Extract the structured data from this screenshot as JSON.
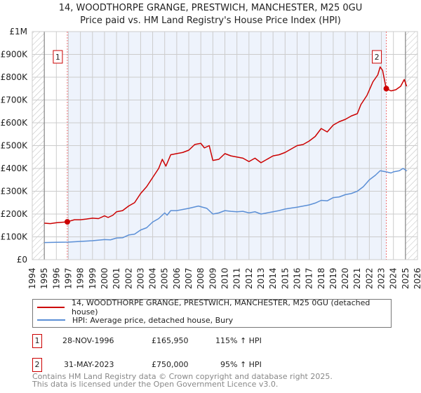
{
  "title_line1": "14, WOODTHORPE GRANGE, PRESTWICH, MANCHESTER, M25 0GU",
  "title_line2": "Price paid vs. HM Land Registry's House Price Index (HPI)",
  "chart_data": {
    "type": "line",
    "title": "Price paid vs. HM Land Registry's House Price Index (HPI)",
    "xlim": [
      1994,
      2026
    ],
    "ylim": [
      0,
      1000000
    ],
    "x_ticks": [
      "1994",
      "1995",
      "1996",
      "1997",
      "1998",
      "1999",
      "2000",
      "2001",
      "2002",
      "2003",
      "2004",
      "2005",
      "2006",
      "2007",
      "2008",
      "2009",
      "2010",
      "2011",
      "2012",
      "2013",
      "2014",
      "2015",
      "2016",
      "2017",
      "2018",
      "2019",
      "2020",
      "2021",
      "2022",
      "2023",
      "2024",
      "2025",
      "2026"
    ],
    "y_ticks": [
      {
        "v": 0,
        "label": "£0"
      },
      {
        "v": 100000,
        "label": "£100K"
      },
      {
        "v": 200000,
        "label": "£200K"
      },
      {
        "v": 300000,
        "label": "£300K"
      },
      {
        "v": 400000,
        "label": "£400K"
      },
      {
        "v": 500000,
        "label": "£500K"
      },
      {
        "v": 600000,
        "label": "£600K"
      },
      {
        "v": 700000,
        "label": "£700K"
      },
      {
        "v": 800000,
        "label": "£800K"
      },
      {
        "v": 900000,
        "label": "£900K"
      },
      {
        "v": 1000000,
        "label": "£1M"
      }
    ],
    "grid": true,
    "series": [
      {
        "name": "14, WOODTHORPE GRANGE, PRESTWICH, MANCHESTER, M25 0GU (detached house)",
        "color": "#cc0000",
        "x": [
          1995,
          1995.5,
          1996,
          1996.9,
          1997.5,
          1998,
          1998.5,
          1999,
          1999.5,
          2000,
          2000.3,
          2000.7,
          2001,
          2001.5,
          2002,
          2002.5,
          2003,
          2003.5,
          2004,
          2004.5,
          2004.8,
          2005.1,
          2005.5,
          2006,
          2006.5,
          2007,
          2007.5,
          2008,
          2008.3,
          2008.7,
          2009,
          2009.5,
          2010,
          2010.5,
          2011,
          2011.5,
          2012,
          2012.5,
          2013,
          2013.5,
          2014,
          2014.5,
          2015,
          2015.5,
          2016,
          2016.5,
          2017,
          2017.5,
          2018,
          2018.5,
          2019,
          2019.5,
          2020,
          2020.5,
          2021,
          2021.3,
          2021.8,
          2022.3,
          2022.7,
          2022.9,
          2023.1,
          2023.4,
          2023.8,
          2024.2,
          2024.6,
          2024.9,
          2025.1
        ],
        "y": [
          160000,
          158000,
          162000,
          165950,
          175000,
          175000,
          178000,
          182000,
          180000,
          192000,
          185000,
          195000,
          210000,
          215000,
          235000,
          250000,
          290000,
          320000,
          360000,
          400000,
          440000,
          410000,
          460000,
          465000,
          470000,
          480000,
          505000,
          510000,
          490000,
          500000,
          435000,
          440000,
          465000,
          455000,
          450000,
          445000,
          430000,
          445000,
          425000,
          440000,
          455000,
          460000,
          470000,
          485000,
          500000,
          505000,
          520000,
          540000,
          575000,
          560000,
          590000,
          605000,
          615000,
          630000,
          640000,
          680000,
          720000,
          780000,
          810000,
          845000,
          830000,
          750000,
          740000,
          745000,
          760000,
          790000,
          760000
        ]
      },
      {
        "name": "HPI: Average price, detached house, Bury",
        "color": "#5b8fd6",
        "x": [
          1995,
          1996,
          1997,
          1998,
          1999,
          2000,
          2000.5,
          2001,
          2001.5,
          2002,
          2002.5,
          2003,
          2003.5,
          2004,
          2004.5,
          2005,
          2005.2,
          2005.5,
          2006,
          2006.5,
          2007,
          2007.8,
          2008.5,
          2009,
          2009.5,
          2010,
          2010.5,
          2011,
          2011.5,
          2012,
          2012.5,
          2013,
          2013.5,
          2014,
          2014.5,
          2015,
          2015.5,
          2016,
          2016.5,
          2017,
          2017.5,
          2018,
          2018.5,
          2019,
          2019.5,
          2020,
          2020.5,
          2021,
          2021.5,
          2022,
          2022.5,
          2022.9,
          2023.4,
          2023.8,
          2024,
          2024.5,
          2024.8,
          2025.1
        ],
        "y": [
          75000,
          76000,
          77000,
          80000,
          83000,
          88000,
          87000,
          95000,
          96000,
          108000,
          112000,
          130000,
          140000,
          165000,
          180000,
          205000,
          195000,
          215000,
          215000,
          220000,
          225000,
          235000,
          225000,
          200000,
          205000,
          215000,
          212000,
          210000,
          212000,
          205000,
          210000,
          200000,
          205000,
          210000,
          215000,
          222000,
          226000,
          230000,
          235000,
          240000,
          248000,
          260000,
          258000,
          272000,
          275000,
          285000,
          290000,
          300000,
          320000,
          350000,
          370000,
          390000,
          385000,
          380000,
          385000,
          390000,
          400000,
          390000
        ]
      }
    ],
    "annotations": [
      {
        "label": "1",
        "x": 1996.91,
        "y": 165950
      },
      {
        "label": "2",
        "x": 2023.41,
        "y": 750000
      }
    ],
    "legend_position": "below"
  },
  "legend": [
    {
      "label": "14, WOODTHORPE GRANGE, PRESTWICH, MANCHESTER, M25 0GU (detached house)",
      "color": "#cc0000"
    },
    {
      "label": "HPI: Average price, detached house, Bury",
      "color": "#5b8fd6"
    }
  ],
  "sales": [
    {
      "num": "1",
      "date": "28-NOV-1996",
      "price": "£165,950",
      "hpi": "115% ↑ HPI"
    },
    {
      "num": "2",
      "date": "31-MAY-2023",
      "price": "£750,000",
      "hpi": "95% ↑ HPI"
    }
  ],
  "footer_line1": "Contains HM Land Registry data © Crown copyright and database right 2025.",
  "footer_line2": "This data is licensed under the Open Government Licence v3.0."
}
